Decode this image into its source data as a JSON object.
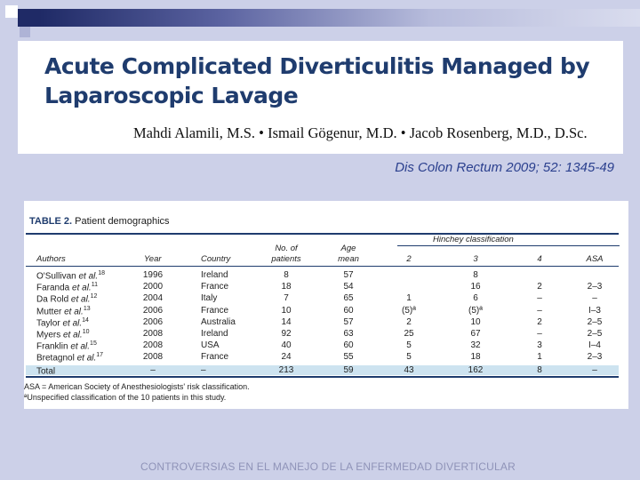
{
  "slide": {
    "title": "Acute Complicated Diverticulitis Managed by Laparoscopic Lavage",
    "authors": "Mahdi Alamili, M.S. • Ismail Gögenur, M.D. • Jacob Rosenberg, M.D., D.Sc.",
    "citation": "Dis Colon Rectum 2009; 52: 1345-49",
    "footer": "CONTROVERSIAS EN EL MANEJO DE LA ENFERMEDAD DIVERTICULAR"
  },
  "table": {
    "caption_label": "TABLE 2.",
    "caption_text": "Patient demographics",
    "hinchey_header": "Hinchey classification",
    "headers": {
      "authors": "Authors",
      "year": "Year",
      "country": "Country",
      "patients_l1": "No. of",
      "patients_l2": "patients",
      "age_l1": "Age",
      "age_l2": "mean",
      "h2": "2",
      "h3": "3",
      "h4": "4",
      "asa": "ASA"
    },
    "rows": [
      {
        "author": "O'Sullivan et al.",
        "ref": "18",
        "year": "1996",
        "country": "Ireland",
        "n": "8",
        "age": "57",
        "h2": "",
        "h3": "8",
        "h4": "",
        "asa": ""
      },
      {
        "author": "Faranda et al.",
        "ref": "11",
        "year": "2000",
        "country": "France",
        "n": "18",
        "age": "54",
        "h2": "",
        "h3": "16",
        "h4": "2",
        "asa": "2–3"
      },
      {
        "author": "Da Rold et al.",
        "ref": "12",
        "year": "2004",
        "country": "Italy",
        "n": "7",
        "age": "65",
        "h2": "1",
        "h3": "6",
        "h4": "–",
        "asa": "–"
      },
      {
        "author": "Mutter et al.",
        "ref": "13",
        "year": "2006",
        "country": "France",
        "n": "10",
        "age": "60",
        "h2": "(5)ª",
        "h3": "(5)ª",
        "h4": "–",
        "asa": "I–3"
      },
      {
        "author": "Taylor et al.",
        "ref": "14",
        "year": "2006",
        "country": "Australia",
        "n": "14",
        "age": "57",
        "h2": "2",
        "h3": "10",
        "h4": "2",
        "asa": "2–5"
      },
      {
        "author": "Myers et al.",
        "ref": "10",
        "year": "2008",
        "country": "Ireland",
        "n": "92",
        "age": "63",
        "h2": "25",
        "h3": "67",
        "h4": "–",
        "asa": "2–5"
      },
      {
        "author": "Franklin et al.",
        "ref": "15",
        "year": "2008",
        "country": "USA",
        "n": "40",
        "age": "60",
        "h2": "5",
        "h3": "32",
        "h4": "3",
        "asa": "I–4"
      },
      {
        "author": "Bretagnol et al.",
        "ref": "17",
        "year": "2008",
        "country": "France",
        "n": "24",
        "age": "55",
        "h2": "5",
        "h3": "18",
        "h4": "1",
        "asa": "2–3"
      }
    ],
    "total": {
      "author": "Total",
      "ref": "",
      "year": "–",
      "country": "–",
      "n": "213",
      "age": "59",
      "h2": "43",
      "h3": "162",
      "h4": "8",
      "asa": "–"
    },
    "note1": "ASA = American Society of Anesthesiologists' risk classification.",
    "note2": "ªUnspecified classification of the 10 patients in this study."
  },
  "colors": {
    "background": "#ccd0e8",
    "title": "#1f3c6e",
    "citation": "#2a3f8e",
    "total_row": "#cde3f0"
  }
}
